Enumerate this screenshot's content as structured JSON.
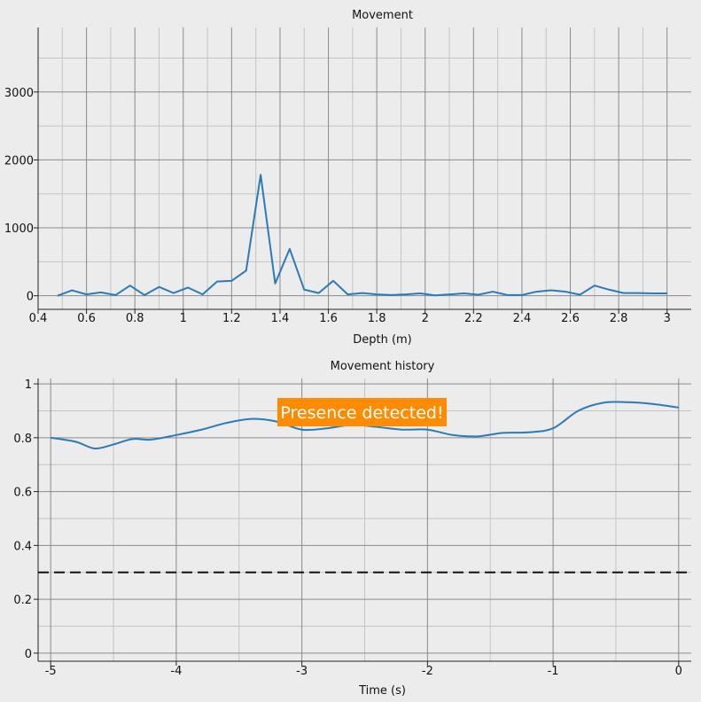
{
  "colors": {
    "series": "#2a7bb6",
    "badge": "#ff8c00",
    "threshold": "#111111"
  },
  "chart_data": [
    {
      "type": "line",
      "title": "Movement",
      "xlabel": "Depth (m)",
      "ylabel": "",
      "xlim": [
        0.4,
        3.1
      ],
      "ylim": [
        -200,
        3950
      ],
      "xticks": [
        0.4,
        0.6,
        0.8,
        1,
        1.2,
        1.4,
        1.6,
        1.8,
        2,
        2.2,
        2.4,
        2.6,
        2.8,
        3
      ],
      "xtick_labels": [
        "0.4",
        "0.6",
        "0.8",
        "1",
        "1.2",
        "1.4",
        "1.6",
        "1.8",
        "2",
        "2.2",
        "2.4",
        "2.6",
        "2.8",
        "3"
      ],
      "yticks": [
        0,
        1000,
        2000,
        3000
      ],
      "ytick_labels": [
        "0",
        "1000",
        "2000",
        "3000"
      ],
      "grid": true,
      "series": [
        {
          "x": [
            0.48,
            0.54,
            0.6,
            0.66,
            0.72,
            0.78,
            0.84,
            0.9,
            0.96,
            1.02,
            1.08,
            1.14,
            1.2,
            1.26,
            1.32,
            1.38,
            1.44,
            1.5,
            1.56,
            1.62,
            1.68,
            1.74,
            1.8,
            1.86,
            1.92,
            1.98,
            2.04,
            2.1,
            2.16,
            2.22,
            2.28,
            2.34,
            2.4,
            2.46,
            2.52,
            2.58,
            2.64,
            2.7,
            2.76,
            2.82,
            2.88,
            2.94,
            3.0
          ],
          "y": [
            0,
            80,
            20,
            50,
            10,
            150,
            10,
            130,
            40,
            120,
            20,
            210,
            220,
            370,
            1780,
            180,
            690,
            90,
            40,
            220,
            20,
            40,
            20,
            10,
            20,
            35,
            5,
            20,
            35,
            15,
            60,
            10,
            10,
            60,
            80,
            60,
            15,
            150,
            90,
            40,
            40,
            35,
            35
          ]
        }
      ]
    },
    {
      "type": "line",
      "title": "Movement history",
      "xlabel": "Time (s)",
      "ylabel": "",
      "xlim": [
        -5.1,
        0.1
      ],
      "ylim": [
        -0.03,
        1.02
      ],
      "xticks": [
        -5,
        -4,
        -3,
        -2,
        -1,
        0
      ],
      "xtick_labels": [
        "-5",
        "-4",
        "-3",
        "-2",
        "-1",
        "0"
      ],
      "yticks": [
        0,
        0.2,
        0.4,
        0.6,
        0.8,
        1
      ],
      "ytick_labels": [
        "0",
        "0.2",
        "0.4",
        "0.6",
        "0.8",
        "1"
      ],
      "grid": true,
      "threshold": 0.3,
      "annotation": "Presence detected!",
      "series": [
        {
          "x": [
            -5.0,
            -4.8,
            -4.65,
            -4.5,
            -4.35,
            -4.2,
            -4.0,
            -3.8,
            -3.6,
            -3.4,
            -3.2,
            -3.0,
            -2.8,
            -2.6,
            -2.4,
            -2.2,
            -2.0,
            -1.8,
            -1.6,
            -1.4,
            -1.2,
            -1.0,
            -0.8,
            -0.6,
            -0.4,
            -0.2,
            0.0
          ],
          "y": [
            0.8,
            0.785,
            0.76,
            0.775,
            0.795,
            0.793,
            0.81,
            0.83,
            0.855,
            0.87,
            0.86,
            0.83,
            0.835,
            0.848,
            0.84,
            0.83,
            0.83,
            0.81,
            0.805,
            0.818,
            0.82,
            0.835,
            0.9,
            0.93,
            0.932,
            0.925,
            0.912
          ]
        }
      ]
    }
  ]
}
